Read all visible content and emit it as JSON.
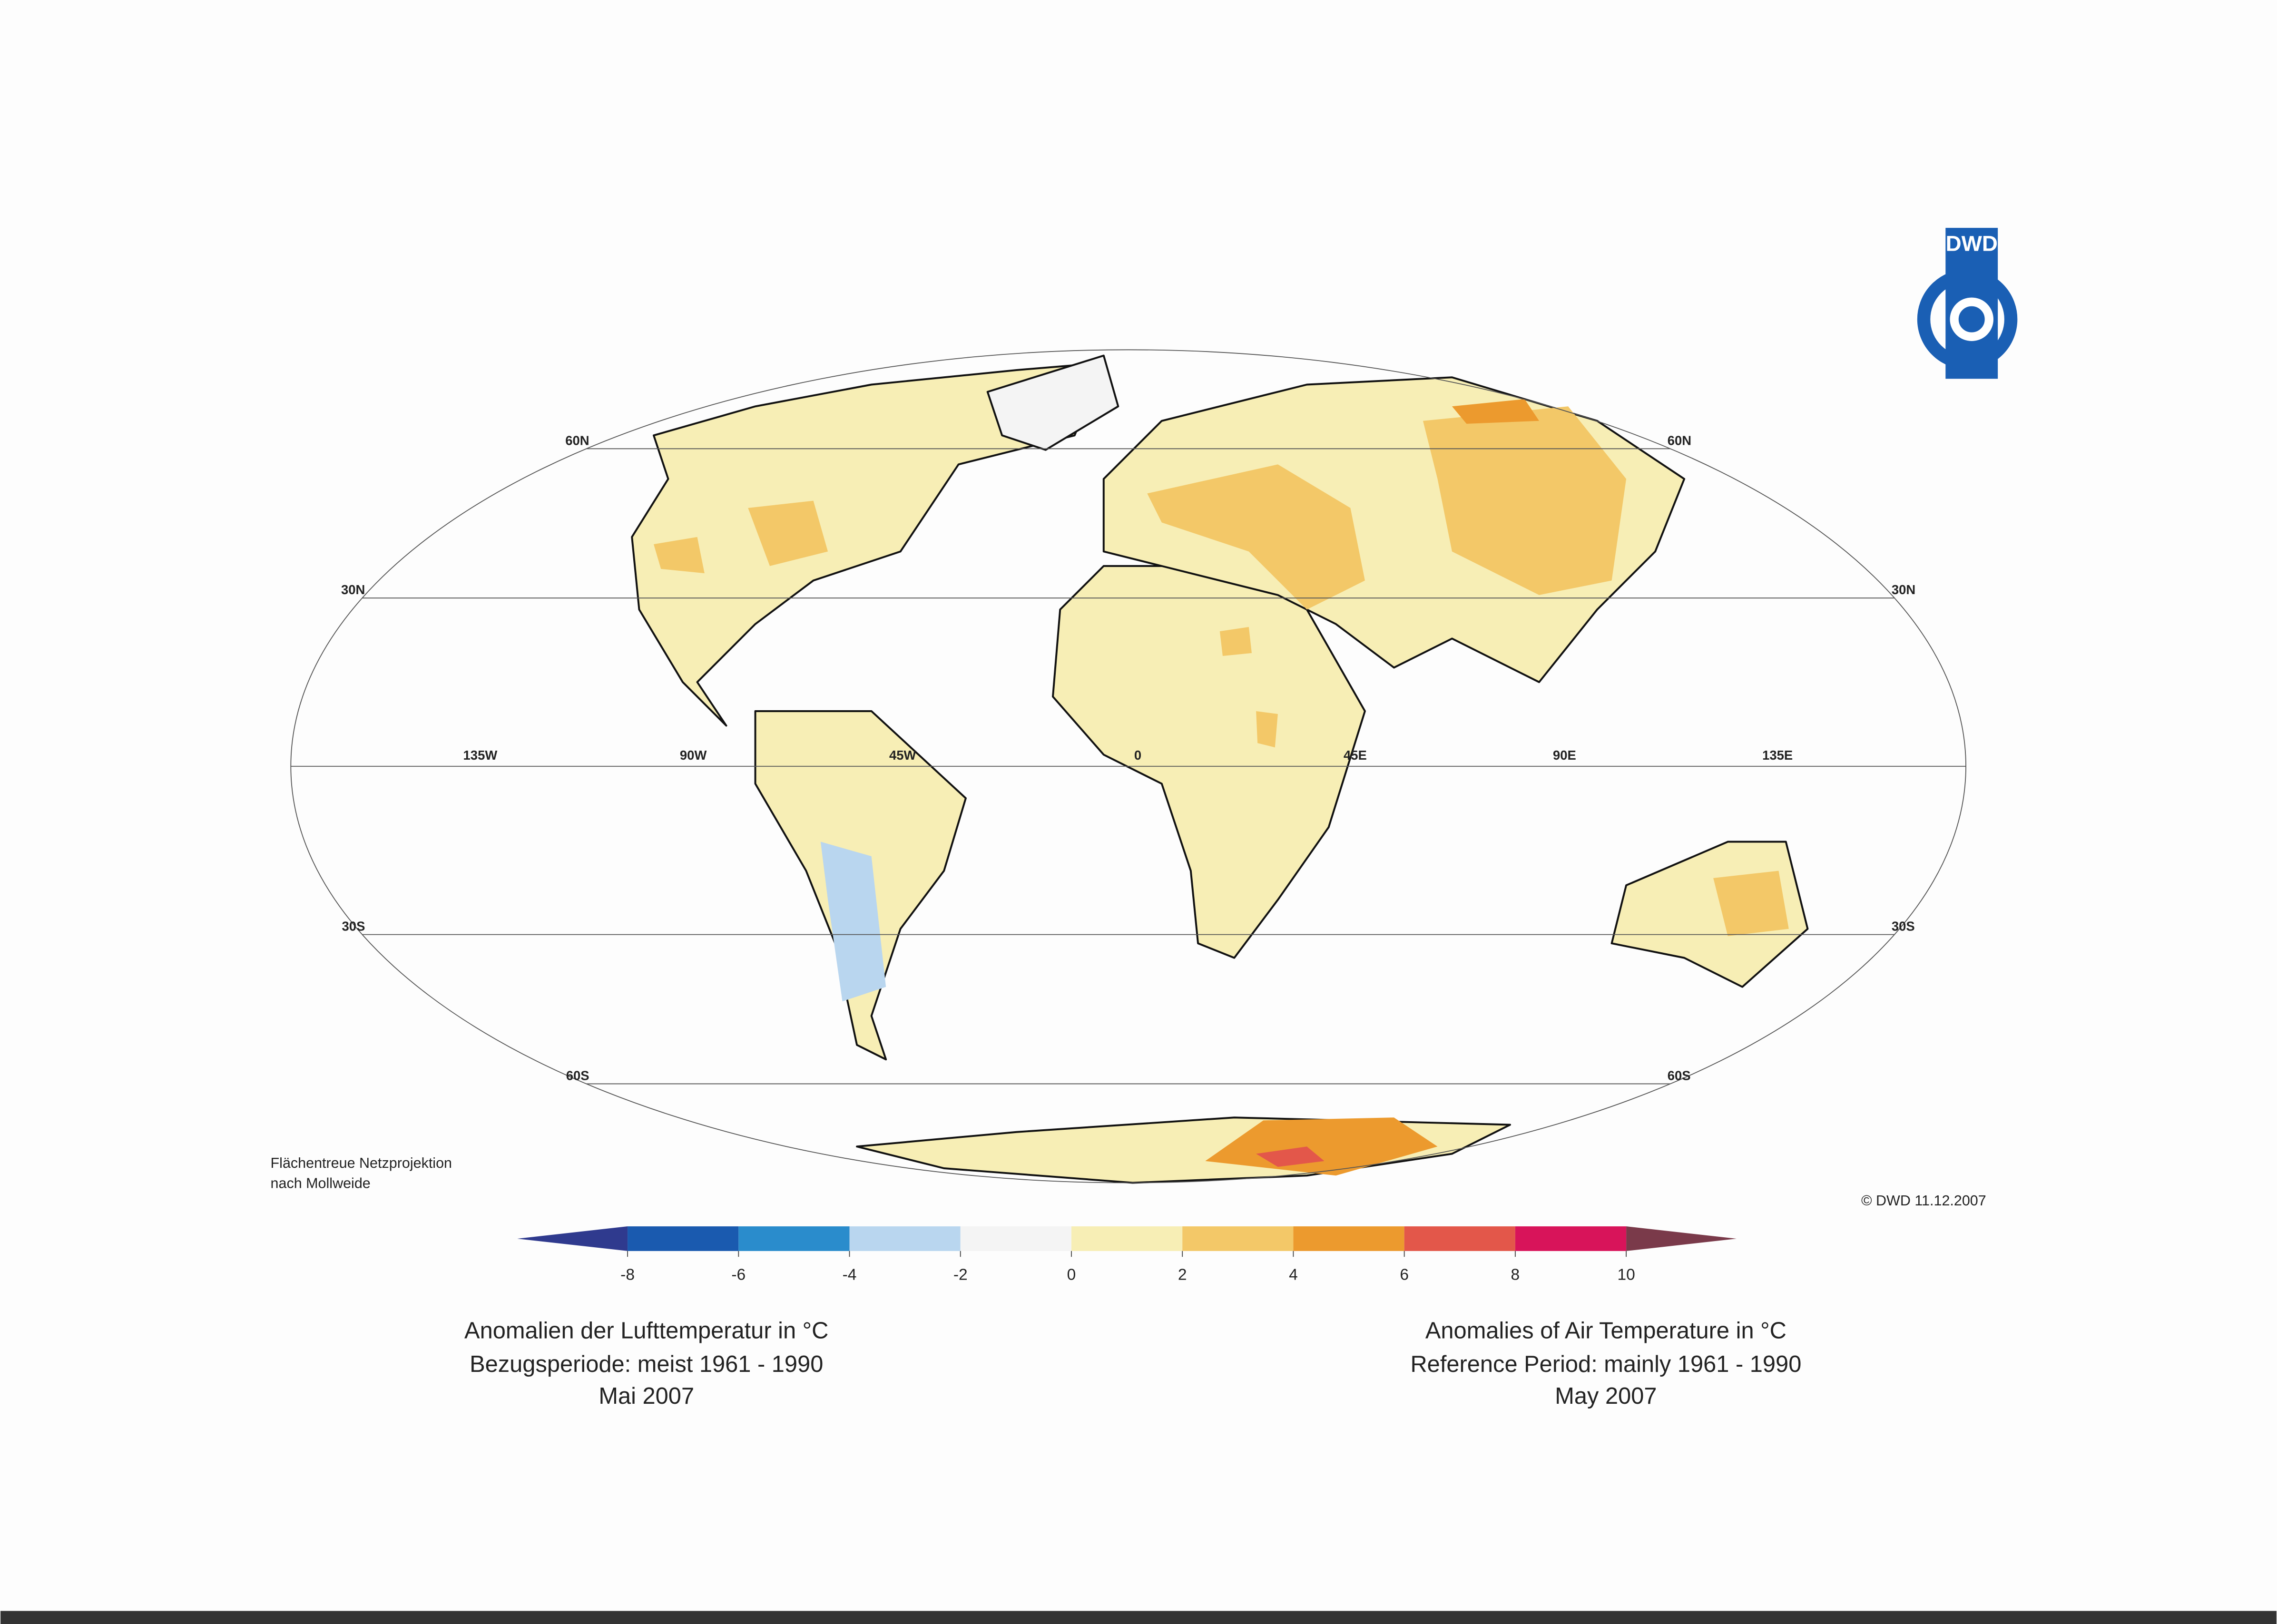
{
  "logo": "DWD",
  "graticule": {
    "parallels": [
      "60N",
      "30N",
      "30S",
      "60S"
    ],
    "meridians": [
      "135W",
      "90W",
      "45W",
      "0",
      "45E",
      "90E",
      "135E"
    ]
  },
  "projection_note": [
    "Flächentreue Netzprojektion",
    "nach Mollweide"
  ],
  "copyright": "© DWD 11.12.2007",
  "colorbar": {
    "ticks": [
      -8,
      -6,
      -4,
      -2,
      0,
      2,
      4,
      6,
      8,
      10
    ],
    "colors": [
      "#1a5aaf",
      "#2a8ccc",
      "#b9d6ef",
      "#f4f4f4",
      "#f7eeb5",
      "#f3c868",
      "#ec9a2e",
      "#e3574a",
      "#d8145a"
    ],
    "under_color": "#2f3a8e",
    "over_color": "#7a3a4a"
  },
  "title_de": [
    "Anomalien der Lufttemperatur in °C",
    "Bezugsperiode: meist 1961 - 1990",
    "Mai 2007"
  ],
  "title_en": [
    "Anomalies of Air Temperature in °C",
    "Reference Period: mainly 1961 - 1990",
    "May 2007"
  ]
}
